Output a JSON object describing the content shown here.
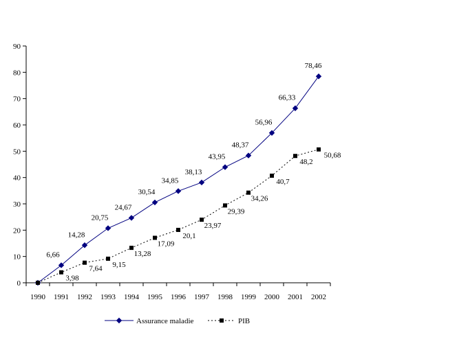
{
  "chart_data": {
    "type": "line",
    "x": [
      "1990",
      "1991",
      "1992",
      "1993",
      "1994",
      "1995",
      "1996",
      "1997",
      "1998",
      "1999",
      "2000",
      "2001",
      "2002"
    ],
    "ylim": [
      0,
      90
    ],
    "yticks": [
      0,
      10,
      20,
      30,
      40,
      50,
      60,
      70,
      80,
      90
    ],
    "grid": false,
    "legend_position": "bottom",
    "series": [
      {
        "name": "Assurance maladie",
        "values": [
          0,
          6.66,
          14.28,
          20.75,
          24.67,
          30.54,
          34.85,
          38.13,
          43.95,
          48.37,
          56.96,
          66.33,
          78.46
        ],
        "labels": [
          "",
          "6,66",
          "14,28",
          "20,75",
          "24,67",
          "30,54",
          "34,85",
          "38,13",
          "43,95",
          "48,37",
          "56,96",
          "66,33",
          "78,46"
        ],
        "color": "#000080",
        "marker": "diamond",
        "line": "solid"
      },
      {
        "name": "PIB",
        "values": [
          0,
          3.98,
          7.64,
          9.15,
          13.28,
          17.09,
          20.1,
          23.97,
          29.39,
          34.26,
          40.7,
          48.2,
          50.68
        ],
        "labels": [
          "",
          "3,98",
          "7,64",
          "9,15",
          "13,28",
          "17,09",
          "20,1",
          "23,97",
          "29,39",
          "34,26",
          "40,7",
          "48,2",
          "50,68"
        ],
        "color": "#000000",
        "marker": "square",
        "line": "dotted"
      }
    ]
  }
}
